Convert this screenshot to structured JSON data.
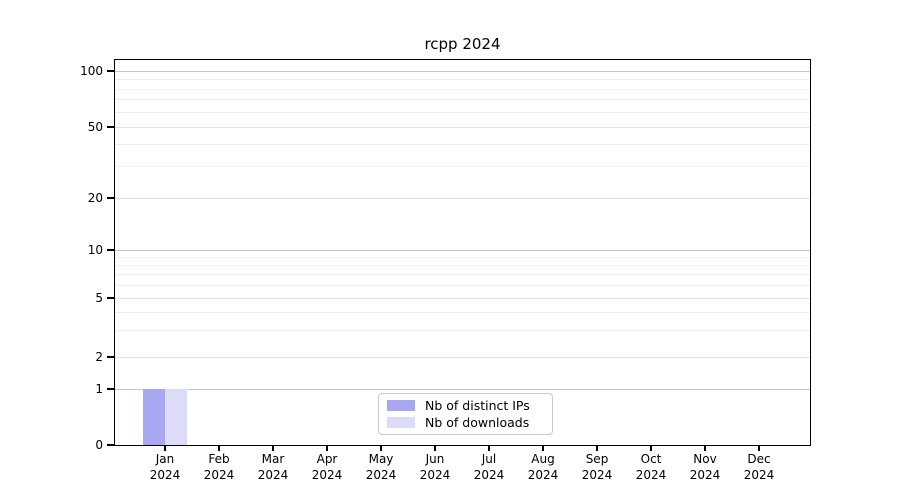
{
  "chart_data": {
    "type": "bar",
    "title": "rcpp 2024",
    "categories": [
      {
        "month": "Jan",
        "year": "2024"
      },
      {
        "month": "Feb",
        "year": "2024"
      },
      {
        "month": "Mar",
        "year": "2024"
      },
      {
        "month": "Apr",
        "year": "2024"
      },
      {
        "month": "May",
        "year": "2024"
      },
      {
        "month": "Jun",
        "year": "2024"
      },
      {
        "month": "Jul",
        "year": "2024"
      },
      {
        "month": "Aug",
        "year": "2024"
      },
      {
        "month": "Sep",
        "year": "2024"
      },
      {
        "month": "Oct",
        "year": "2024"
      },
      {
        "month": "Nov",
        "year": "2024"
      },
      {
        "month": "Dec",
        "year": "2024"
      }
    ],
    "series": [
      {
        "name": "Nb of distinct IPs",
        "color": "#a8a8f2",
        "values": [
          1,
          0,
          0,
          0,
          0,
          0,
          0,
          0,
          0,
          0,
          0,
          0
        ]
      },
      {
        "name": "Nb of downloads",
        "color": "#dcdcf8",
        "values": [
          1,
          0,
          0,
          0,
          0,
          0,
          0,
          0,
          0,
          0,
          0,
          0
        ]
      }
    ],
    "xlabel": "",
    "ylabel": "",
    "yaxis": {
      "scale": "symlog",
      "ticks": [
        0,
        1,
        2,
        5,
        10,
        20,
        50,
        100
      ],
      "decade_ticks": [
        1,
        10,
        100
      ],
      "minor_gridlines": [
        3,
        4,
        6,
        7,
        8,
        9,
        30,
        40,
        60,
        70,
        80,
        90
      ],
      "ylim": [
        0,
        115
      ]
    },
    "grid": "horizontal",
    "legend_position": "bottom-center"
  }
}
